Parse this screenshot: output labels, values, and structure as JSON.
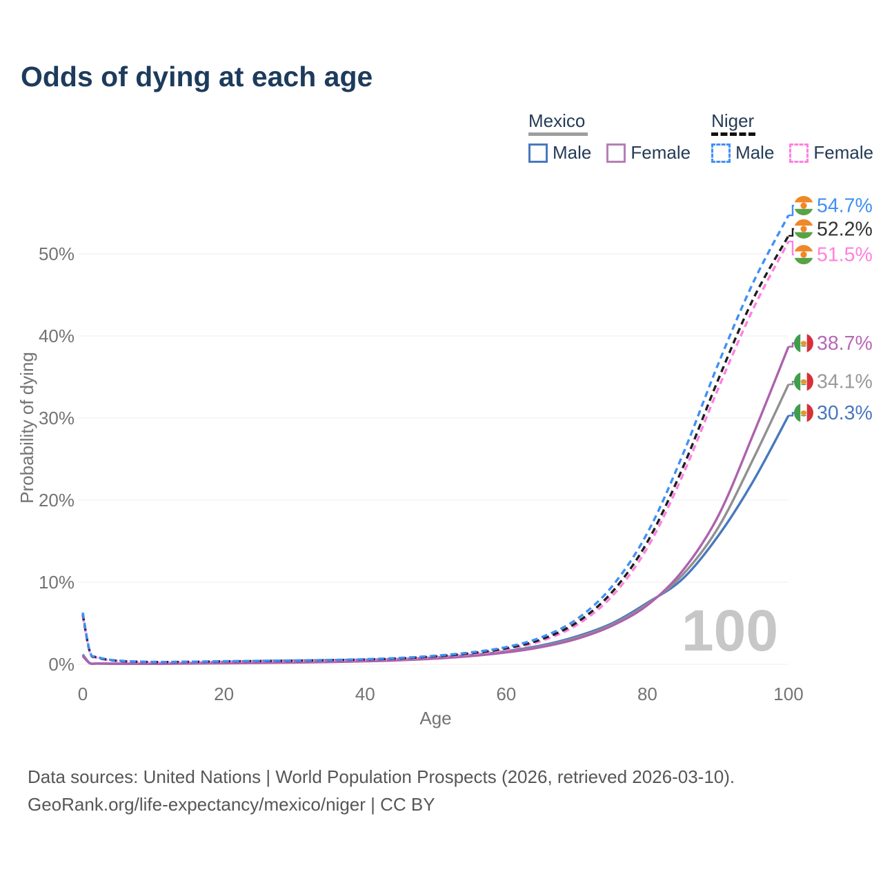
{
  "title": "Odds of dying at each age",
  "legend": {
    "groups": [
      {
        "label": "Mexico",
        "line_style": "solid",
        "underline_color": "#9e9e9e",
        "items": [
          {
            "label": "Male",
            "color": "#4878be"
          },
          {
            "label": "Female",
            "color": "#b57fb7"
          }
        ]
      },
      {
        "label": "Niger",
        "line_style": "dashed",
        "underline_color": "#111111",
        "items": [
          {
            "label": "Male",
            "color": "#4090f5"
          },
          {
            "label": "Female",
            "color": "#ff80df"
          }
        ]
      }
    ]
  },
  "watermark": "100",
  "footer": {
    "line1": "Data sources: United Nations | World Population Prospects (2026, retrieved 2026-03-10).",
    "line2": "GeoRank.org/life-expectancy/mexico/niger | CC BY"
  },
  "chart_data": {
    "type": "line",
    "title": "Odds of dying at each age",
    "xlabel": "Age",
    "ylabel": "Probability of dying",
    "xlim": [
      0,
      100
    ],
    "ylim": [
      0,
      57
    ],
    "x_ticks": [
      0,
      20,
      40,
      60,
      80,
      100
    ],
    "y_ticks": [
      {
        "value": 0,
        "label": "0%"
      },
      {
        "value": 10,
        "label": "10%"
      },
      {
        "value": 20,
        "label": "20%"
      },
      {
        "value": 30,
        "label": "30%"
      },
      {
        "value": 40,
        "label": "40%"
      },
      {
        "value": 50,
        "label": "50%"
      }
    ],
    "grid": "horizontal",
    "legend_position": "top-right",
    "x": [
      0,
      1,
      2,
      5,
      10,
      15,
      20,
      25,
      30,
      35,
      40,
      45,
      50,
      55,
      60,
      65,
      70,
      75,
      80,
      85,
      90,
      95,
      100
    ],
    "series": [
      {
        "name": "Niger Male",
        "country": "niger",
        "sex": "male",
        "dash": true,
        "color": "#4090f5",
        "label_color": "#4090f5",
        "end_label": "54.7%",
        "end_value": 54.7,
        "values": [
          6.3,
          1.6,
          0.9,
          0.45,
          0.3,
          0.32,
          0.38,
          0.42,
          0.47,
          0.53,
          0.62,
          0.78,
          1.05,
          1.45,
          2.1,
          3.3,
          5.5,
          9.5,
          16.0,
          25.5,
          36.5,
          46.5,
          54.7
        ]
      },
      {
        "name": "Niger Both sexes",
        "country": "niger",
        "sex": "both",
        "dash": true,
        "color": "#1f1f1f",
        "label_color": "#333333",
        "end_label": "52.2%",
        "end_value": 52.2,
        "values": [
          6.1,
          1.55,
          0.85,
          0.42,
          0.28,
          0.3,
          0.35,
          0.39,
          0.44,
          0.5,
          0.58,
          0.72,
          0.97,
          1.35,
          1.95,
          3.05,
          5.1,
          8.8,
          14.9,
          23.9,
          34.6,
          44.5,
          52.2
        ]
      },
      {
        "name": "Niger Female",
        "country": "niger",
        "sex": "female",
        "dash": true,
        "color": "#ff80df",
        "label_color": "#ff80df",
        "end_label": "51.5%",
        "end_value": 51.5,
        "values": [
          5.9,
          1.5,
          0.8,
          0.4,
          0.26,
          0.28,
          0.32,
          0.36,
          0.41,
          0.46,
          0.54,
          0.67,
          0.9,
          1.25,
          1.8,
          2.85,
          4.8,
          8.3,
          14.2,
          23.0,
          33.5,
          43.3,
          51.5
        ]
      },
      {
        "name": "Mexico Female",
        "country": "mexico",
        "sex": "female",
        "dash": false,
        "color": "#ad62ad",
        "label_color": "#b768b7",
        "end_label": "38.7%",
        "end_value": 38.7,
        "values": [
          1.0,
          0.12,
          0.09,
          0.06,
          0.06,
          0.09,
          0.13,
          0.17,
          0.22,
          0.28,
          0.37,
          0.5,
          0.7,
          1.0,
          1.45,
          2.1,
          3.1,
          4.7,
          7.2,
          11.4,
          18.0,
          28.0,
          38.7
        ]
      },
      {
        "name": "Mexico Both sexes",
        "country": "mexico",
        "sex": "both",
        "dash": false,
        "color": "#909090",
        "label_color": "#9a9a9a",
        "end_label": "34.1%",
        "end_value": 34.1,
        "values": [
          1.1,
          0.13,
          0.09,
          0.07,
          0.07,
          0.12,
          0.21,
          0.28,
          0.33,
          0.39,
          0.46,
          0.57,
          0.76,
          1.06,
          1.52,
          2.2,
          3.25,
          4.85,
          7.35,
          10.9,
          16.6,
          25.0,
          34.1
        ]
      },
      {
        "name": "Mexico Male",
        "country": "mexico",
        "sex": "male",
        "dash": false,
        "color": "#4878be",
        "label_color": "#4878be",
        "end_label": "30.3%",
        "end_value": 30.3,
        "values": [
          1.2,
          0.15,
          0.1,
          0.08,
          0.08,
          0.15,
          0.3,
          0.4,
          0.45,
          0.5,
          0.56,
          0.65,
          0.82,
          1.12,
          1.6,
          2.3,
          3.4,
          5.0,
          7.5,
          10.4,
          15.6,
          22.3,
          30.3
        ]
      }
    ]
  }
}
